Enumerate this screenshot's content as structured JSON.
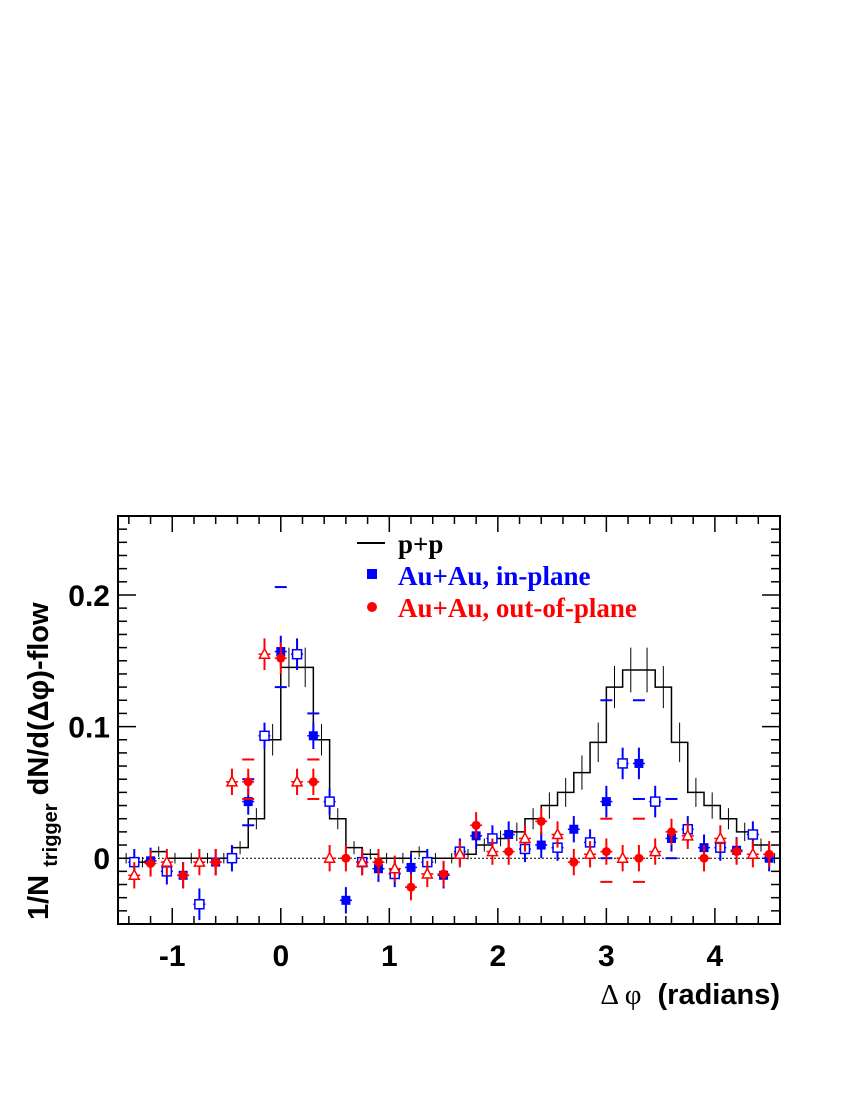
{
  "chart_data": {
    "type": "scatter",
    "xlabel": "Δ φ (radians)",
    "xlabel_parts": {
      "symbol": "Δ φ",
      "unit": "(radians)"
    },
    "ylabel": "1/N_trigger dN/d(Δφ)-flow",
    "ylabel_parts": {
      "pre": "1/N",
      "sub": "trigger",
      "post": " dN/d(Δφ)-flow"
    },
    "xlim": [
      -1.5,
      4.6
    ],
    "ylim": [
      -0.05,
      0.26
    ],
    "x_ticks": [
      -1,
      0,
      1,
      2,
      3,
      4
    ],
    "x_tick_labels": [
      "-1",
      "0",
      "1",
      "2",
      "3",
      "4"
    ],
    "y_ticks": [
      0,
      0.1,
      0.2
    ],
    "y_tick_labels": [
      "0",
      "0.1",
      "0.2"
    ],
    "zero_line": true,
    "legend_position": "top-center",
    "legend": [
      {
        "label": "p+p",
        "color": "#000000",
        "marker": "line"
      },
      {
        "label": "Au+Au, in-plane",
        "color": "#0000ff",
        "marker": "filled-square"
      },
      {
        "label": "Au+Au, out-of-plane",
        "color": "#ff0000",
        "marker": "filled-circle"
      }
    ],
    "series": [
      {
        "name": "p+p",
        "color": "#000000",
        "style": "histogram",
        "bin_edges": [
          -1.5,
          -1.35,
          -1.2,
          -1.05,
          -0.9,
          -0.75,
          -0.6,
          -0.45,
          -0.3,
          -0.15,
          0,
          0.15,
          0.3,
          0.45,
          0.6,
          0.75,
          0.9,
          1.05,
          1.2,
          1.35,
          1.5,
          1.65,
          1.8,
          1.95,
          2.1,
          2.25,
          2.4,
          2.55,
          2.7,
          2.85,
          3.0,
          3.15,
          3.3,
          3.45,
          3.6,
          3.75,
          3.9,
          4.05,
          4.2,
          4.35,
          4.5,
          4.6
        ],
        "values": [
          0.0,
          -0.003,
          0.005,
          0.0,
          0.0,
          0.0,
          0.0,
          0.008,
          0.03,
          0.09,
          0.145,
          0.145,
          0.09,
          0.03,
          0.008,
          0.003,
          0.0,
          0.0,
          0.005,
          0.0,
          0.0,
          0.003,
          0.01,
          0.015,
          0.02,
          0.03,
          0.04,
          0.05,
          0.065,
          0.088,
          0.13,
          0.143,
          0.143,
          0.13,
          0.088,
          0.05,
          0.04,
          0.03,
          0.02,
          0.01,
          0.0
        ],
        "errors": [
          0.004,
          0.004,
          0.004,
          0.004,
          0.004,
          0.004,
          0.004,
          0.005,
          0.008,
          0.012,
          0.015,
          0.015,
          0.012,
          0.008,
          0.005,
          0.004,
          0.004,
          0.004,
          0.004,
          0.004,
          0.004,
          0.004,
          0.005,
          0.006,
          0.007,
          0.008,
          0.01,
          0.011,
          0.013,
          0.015,
          0.016,
          0.017,
          0.017,
          0.016,
          0.015,
          0.011,
          0.01,
          0.008,
          0.007,
          0.005,
          0.004
        ]
      },
      {
        "name": "Au+Au, in-plane",
        "color": "#0000ff",
        "marker": "filled-square",
        "x": [
          -1.2,
          -0.9,
          -0.6,
          -0.3,
          0.0,
          0.3,
          0.6,
          0.9,
          1.2,
          1.5,
          1.8,
          2.1,
          2.4,
          2.7,
          3.0,
          3.3,
          3.6,
          3.9,
          4.2,
          4.5
        ],
        "y": [
          -0.002,
          -0.013,
          -0.003,
          0.043,
          0.157,
          0.093,
          -0.032,
          -0.008,
          -0.007,
          -0.013,
          0.017,
          0.018,
          0.01,
          0.022,
          0.043,
          0.072,
          0.015,
          0.008,
          0.006,
          0.0
        ],
        "yerr": [
          0.01,
          0.01,
          0.01,
          0.01,
          0.012,
          0.01,
          0.01,
          0.01,
          0.01,
          0.01,
          0.01,
          0.01,
          0.01,
          0.01,
          0.012,
          0.012,
          0.01,
          0.01,
          0.01,
          0.01
        ],
        "syst_bands": [
          {
            "x": -0.3,
            "low": 0.025,
            "high": 0.06
          },
          {
            "x": 0.0,
            "low": 0.13,
            "high": 0.206
          },
          {
            "x": 0.3,
            "low": 0.075,
            "high": 0.11
          },
          {
            "x": 3.0,
            "low": 0.0,
            "high": 0.12
          },
          {
            "x": 3.3,
            "low": 0.045,
            "high": 0.12
          },
          {
            "x": 3.6,
            "low": 0.0,
            "high": 0.045
          }
        ]
      },
      {
        "name": "",
        "color": "#0000ff",
        "marker": "open-square",
        "x": [
          -1.35,
          -1.05,
          -0.75,
          -0.45,
          -0.15,
          0.15,
          0.45,
          0.75,
          1.05,
          1.35,
          1.65,
          1.95,
          2.25,
          2.55,
          2.85,
          3.15,
          3.45,
          3.75,
          4.05,
          4.35
        ],
        "y": [
          -0.003,
          -0.01,
          -0.035,
          0.0,
          0.093,
          0.155,
          0.043,
          -0.003,
          -0.012,
          -0.003,
          0.005,
          0.015,
          0.007,
          0.008,
          0.012,
          0.072,
          0.043,
          0.022,
          0.008,
          0.018
        ],
        "yerr": [
          0.01,
          0.01,
          0.012,
          0.01,
          0.01,
          0.012,
          0.01,
          0.01,
          0.01,
          0.01,
          0.01,
          0.01,
          0.01,
          0.01,
          0.01,
          0.012,
          0.012,
          0.01,
          0.01,
          0.01
        ]
      },
      {
        "name": "Au+Au, out-of-plane",
        "color": "#ff0000",
        "marker": "filled-circle",
        "x": [
          -1.2,
          -0.9,
          -0.6,
          -0.3,
          0.0,
          0.3,
          0.6,
          0.9,
          1.2,
          1.5,
          1.8,
          2.1,
          2.4,
          2.7,
          3.0,
          3.3,
          3.6,
          3.9,
          4.2,
          4.5
        ],
        "y": [
          -0.004,
          -0.013,
          -0.003,
          0.058,
          0.152,
          0.058,
          0.0,
          -0.003,
          -0.022,
          -0.012,
          0.025,
          0.005,
          0.028,
          -0.003,
          0.005,
          0.0,
          0.02,
          0.0,
          0.005,
          0.003
        ],
        "yerr": [
          0.01,
          0.01,
          0.01,
          0.01,
          0.012,
          0.01,
          0.01,
          0.01,
          0.01,
          0.01,
          0.01,
          0.01,
          0.01,
          0.01,
          0.01,
          0.01,
          0.01,
          0.01,
          0.01,
          0.01
        ],
        "syst_bands": [
          {
            "x": -0.3,
            "low": 0.045,
            "high": 0.075
          },
          {
            "x": 0.3,
            "low": 0.045,
            "high": 0.075
          },
          {
            "x": 3.0,
            "low": -0.018,
            "high": 0.03
          },
          {
            "x": 3.3,
            "low": -0.018,
            "high": 0.03
          }
        ]
      },
      {
        "name": "",
        "color": "#ff0000",
        "marker": "open-triangle",
        "x": [
          -1.35,
          -1.05,
          -0.75,
          -0.45,
          -0.15,
          0.15,
          0.45,
          0.75,
          1.05,
          1.35,
          1.65,
          1.95,
          2.25,
          2.55,
          2.85,
          3.15,
          3.45,
          3.75,
          4.05,
          4.35
        ],
        "y": [
          -0.013,
          -0.003,
          -0.003,
          0.058,
          0.155,
          0.058,
          0.0,
          -0.003,
          -0.008,
          -0.012,
          0.003,
          0.005,
          0.015,
          0.018,
          0.003,
          0.0,
          0.005,
          0.017,
          0.015,
          0.003
        ],
        "yerr": [
          0.01,
          0.01,
          0.01,
          0.01,
          0.012,
          0.01,
          0.01,
          0.01,
          0.01,
          0.01,
          0.01,
          0.01,
          0.01,
          0.01,
          0.01,
          0.01,
          0.01,
          0.01,
          0.01,
          0.01
        ]
      }
    ]
  }
}
